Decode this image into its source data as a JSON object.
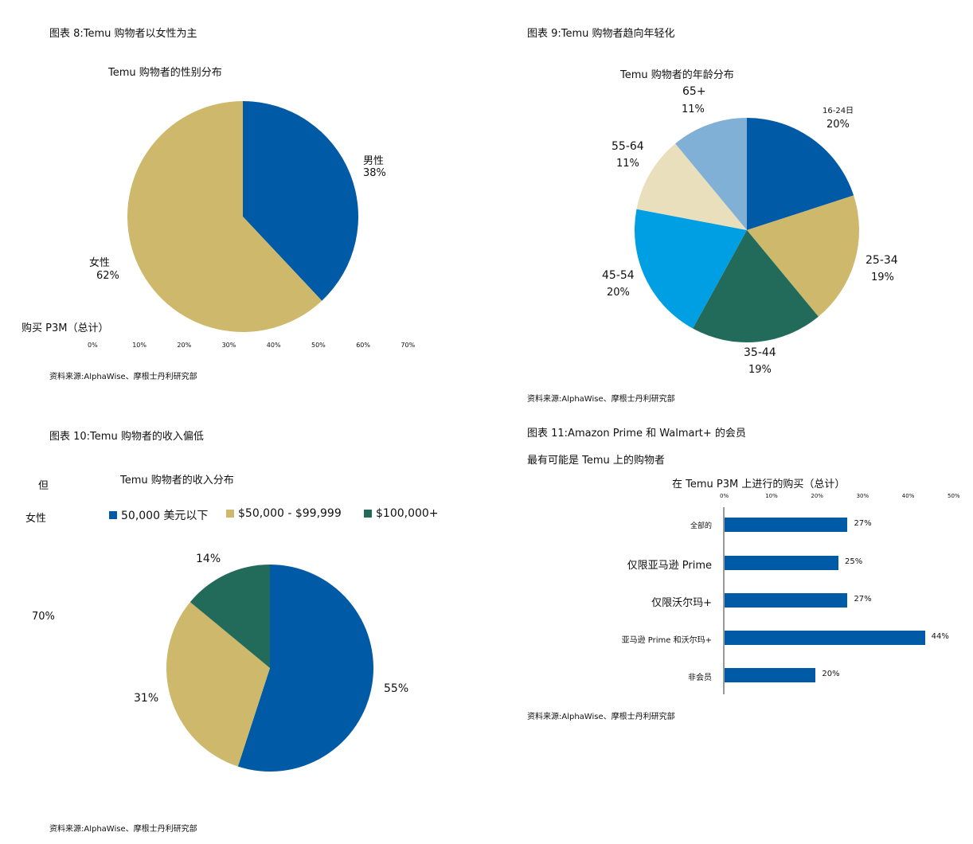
{
  "colors": {
    "navy": "#005aa5",
    "gold": "#cdb86b",
    "green": "#226b5a",
    "sky": "#009fe3",
    "cream": "#e9dfbd",
    "lightblue": "#80b0d6",
    "axis": "#999999"
  },
  "panel8": {
    "fig_title": "图表 8:Temu 购物者以女性为主",
    "source": "资料来源:AlphaWise、摩根士丹利研究部",
    "stray_label": "购买 P3M（总计）",
    "stray_ticks": [
      "0%",
      "10%",
      "20%",
      "30%",
      "40%",
      "50%",
      "60%",
      "70%"
    ]
  },
  "panel9": {
    "fig_title": "图表 9:Temu 购物者趋向年轻化",
    "source": "资料来源:AlphaWise、摩根士丹利研究部"
  },
  "panel10": {
    "fig_title": "图表 10:Temu 购物者的收入偏低",
    "source": "资料来源:AlphaWise、摩根士丹利研究部",
    "stray_texts": [
      "但",
      "女性",
      "70%"
    ]
  },
  "panel11": {
    "fig_title": "图表 11:Amazon Prime 和 Walmart+ 的会员",
    "fig_title_line2": "最有可能是 Temu 上的购物者",
    "source": "资料来源:AlphaWise、摩根士丹利研究部"
  },
  "chart_data": [
    {
      "type": "pie",
      "title": "Temu 购物者的性别分布",
      "categories": [
        "男性",
        "女性"
      ],
      "values": [
        38,
        62
      ],
      "value_labels": [
        "38%",
        "62%"
      ],
      "colors": [
        "#005aa5",
        "#cdb86b"
      ]
    },
    {
      "type": "pie",
      "title": "Temu 购物者的年龄分布",
      "categories": [
        "16-24日",
        "25-34",
        "35-44",
        "45-54",
        "55-64",
        "65+"
      ],
      "values": [
        20,
        19,
        19,
        20,
        11,
        11
      ],
      "value_labels": [
        "20%",
        "19%",
        "19%",
        "20%",
        "11%",
        "11%"
      ],
      "colors": [
        "#005aa5",
        "#cdb86b",
        "#226b5a",
        "#009fe3",
        "#e9dfbd",
        "#80b0d6"
      ]
    },
    {
      "type": "pie",
      "title": "Temu 购物者的收入分布",
      "categories": [
        "50,000 美元以下",
        "$50,000 - $99,999",
        "$100,000+"
      ],
      "values": [
        55,
        31,
        14
      ],
      "value_labels": [
        "55%",
        "31%",
        "14%"
      ],
      "colors": [
        "#005aa5",
        "#cdb86b",
        "#226b5a"
      ],
      "legend": "top"
    },
    {
      "type": "bar",
      "orientation": "horizontal",
      "title": "在 Temu P3M 上进行的购买（总计）",
      "categories": [
        "全部的",
        "仅限亚马逊 Prime",
        "仅限沃尔玛+",
        "亚马逊 Prime 和沃尔玛+",
        "非会员"
      ],
      "values": [
        27,
        25,
        27,
        44,
        20
      ],
      "value_labels": [
        "27%",
        "25%",
        "27%",
        "44%",
        "20%"
      ],
      "xlim": [
        0,
        50
      ],
      "xticks": [
        "0%",
        "10%",
        "20%",
        "30%",
        "40%",
        "50%"
      ],
      "color": "#005aa5"
    }
  ]
}
